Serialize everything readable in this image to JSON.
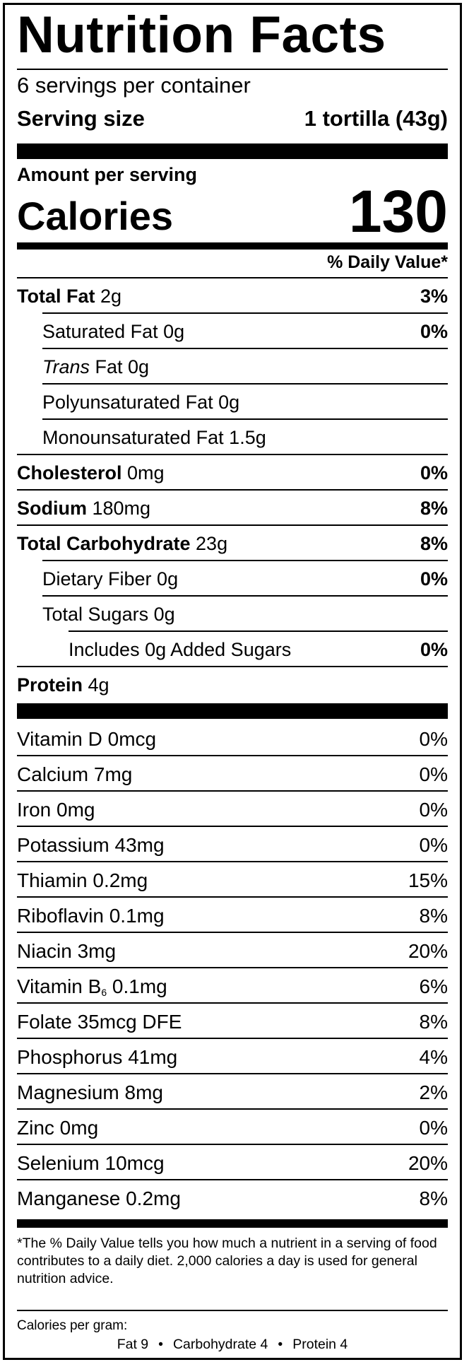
{
  "label": {
    "title": "Nutrition Facts",
    "servings_per_container": "6 servings per container",
    "serving_size_label": "Serving size",
    "serving_size_value": "1 tortilla (43g)",
    "amount_per_serving": "Amount per serving",
    "calories_label": "Calories",
    "calories_value": "130",
    "daily_value_header": "% Daily Value*"
  },
  "nutrients": [
    {
      "name": "Total Fat",
      "amount": " 2g",
      "dv": "3%"
    },
    {
      "name": "Saturated Fat",
      "amount": " 0g",
      "dv": "0%"
    },
    {
      "name": "Trans",
      "amount": " Fat 0g",
      "dv": ""
    },
    {
      "name": "Polyunsaturated Fat",
      "amount": " 0g",
      "dv": ""
    },
    {
      "name": "Monounsaturated Fat",
      "amount": " 1.5g",
      "dv": ""
    },
    {
      "name": "Cholesterol",
      "amount": " 0mg",
      "dv": "0%"
    },
    {
      "name": "Sodium",
      "amount": " 180mg",
      "dv": "8%"
    },
    {
      "name": "Total Carbohydrate",
      "amount": " 23g",
      "dv": "8%"
    },
    {
      "name": "Dietary Fiber",
      "amount": " 0g",
      "dv": "0%"
    },
    {
      "name": "Total Sugars",
      "amount": " 0g",
      "dv": ""
    },
    {
      "name": "Includes 0g Added Sugars",
      "amount": "",
      "dv": "0%"
    },
    {
      "name": "Protein",
      "amount": " 4g",
      "dv": ""
    }
  ],
  "vitamins": [
    {
      "name": "Vitamin D 0mcg",
      "dv": "0%"
    },
    {
      "name": "Calcium 7mg",
      "dv": "0%"
    },
    {
      "name": "Iron 0mg",
      "dv": "0%"
    },
    {
      "name": "Potassium 43mg",
      "dv": "0%"
    },
    {
      "name": "Thiamin 0.2mg",
      "dv": "15%"
    },
    {
      "name": "Riboflavin 0.1mg",
      "dv": "8%"
    },
    {
      "name": "Niacin 3mg",
      "dv": "20%"
    },
    {
      "name": "Vitamin B",
      "sub": "6",
      "amount": " 0.1mg",
      "dv": "6%"
    },
    {
      "name": "Folate 35mcg DFE",
      "dv": "8%"
    },
    {
      "name": "Phosphorus 41mg",
      "dv": "4%"
    },
    {
      "name": "Magnesium 8mg",
      "dv": "2%"
    },
    {
      "name": "Zinc 0mg",
      "dv": "0%"
    },
    {
      "name": "Selenium 10mcg",
      "dv": "20%"
    },
    {
      "name": "Manganese 0.2mg",
      "dv": "8%"
    }
  ],
  "footnote": "*The % Daily Value tells you how much a nutrient in a serving of food contributes to a daily diet. 2,000 calories a day is used for general nutrition advice.",
  "calories_per_gram": {
    "label": "Calories per gram:",
    "fat": "Fat 9",
    "carbohydrate": "Carbohydrate 4",
    "protein": "Protein 4",
    "separator": "•"
  }
}
